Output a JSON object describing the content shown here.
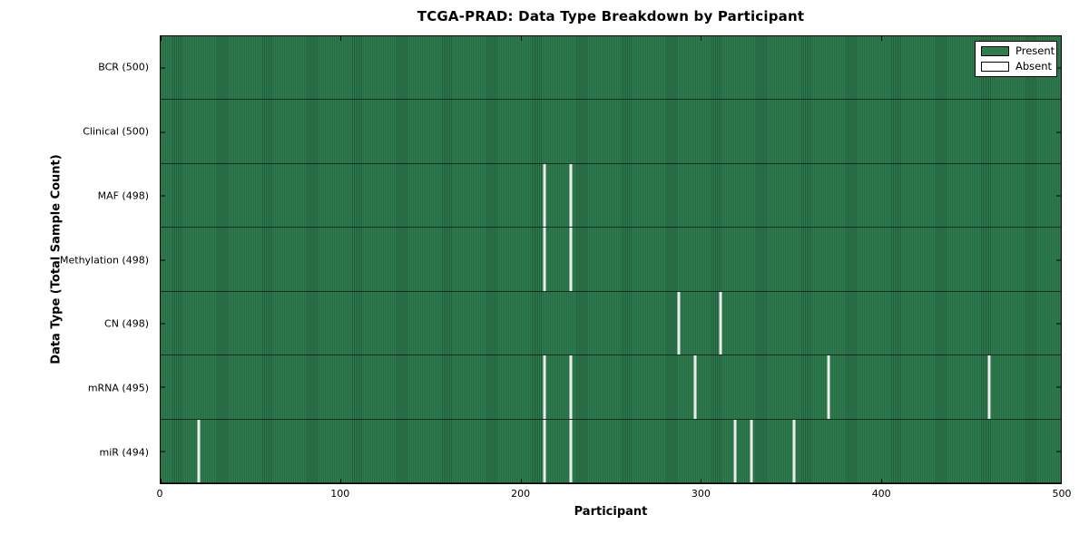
{
  "chart_data": {
    "type": "heatmap",
    "title": "TCGA-PRAD: Data Type Breakdown by Participant",
    "xlabel": "Participant",
    "ylabel": "Data Type (Total Sample Count)",
    "xlim": [
      0,
      500
    ],
    "x_ticks": [
      0,
      100,
      200,
      300,
      400,
      500
    ],
    "grid": false,
    "legend_position": "upper right",
    "legend": [
      {
        "label": "Present",
        "color": "#2e7d4f"
      },
      {
        "label": "Absent",
        "color": "#ffffff"
      }
    ],
    "colors": {
      "present_fill": "#2e7d4f",
      "present_edge": "#205c3b",
      "absent_line": "#ececec",
      "frame": "#000000",
      "background": "#ffffff"
    },
    "rows": [
      {
        "label": "BCR (500)",
        "data_type": "BCR",
        "total_samples": 500,
        "absent_participants": []
      },
      {
        "label": "Clinical (500)",
        "data_type": "Clinical",
        "total_samples": 500,
        "absent_participants": []
      },
      {
        "label": "MAF (498)",
        "data_type": "MAF",
        "total_samples": 498,
        "absent_participants": [
          213,
          228
        ]
      },
      {
        "label": "Methylation (498)",
        "data_type": "Methylation",
        "total_samples": 498,
        "absent_participants": [
          213,
          228
        ]
      },
      {
        "label": "CN (498)",
        "data_type": "CN",
        "total_samples": 498,
        "absent_participants": [
          288,
          311
        ]
      },
      {
        "label": "mRNA (495)",
        "data_type": "mRNA",
        "total_samples": 495,
        "absent_participants": [
          213,
          228,
          297,
          371,
          460
        ]
      },
      {
        "label": "miR (494)",
        "data_type": "miR",
        "total_samples": 494,
        "absent_participants": [
          21,
          213,
          228,
          319,
          328,
          352
        ]
      }
    ]
  }
}
